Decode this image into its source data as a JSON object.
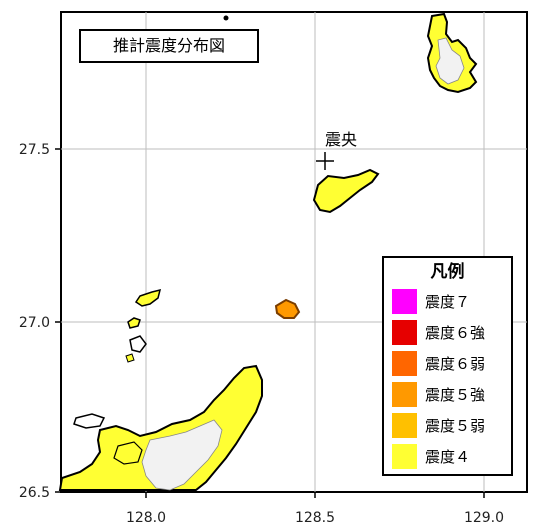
{
  "map": {
    "title": "推計震度分布図",
    "epicenter_label": "震央",
    "x_ticks": [
      "128.0",
      "128.5",
      "129.0"
    ],
    "y_ticks": [
      "27.5",
      "27.0",
      "26.5"
    ]
  },
  "legend": {
    "title": "凡例",
    "items": [
      {
        "label": "震度７",
        "color": "#ff00ff"
      },
      {
        "label": "震度６強",
        "color": "#e60000"
      },
      {
        "label": "震度６弱",
        "color": "#ff6600"
      },
      {
        "label": "震度５強",
        "color": "#ff9900"
      },
      {
        "label": "震度５弱",
        "color": "#ffc000"
      },
      {
        "label": "震度４",
        "color": "#ffff33"
      }
    ]
  }
}
